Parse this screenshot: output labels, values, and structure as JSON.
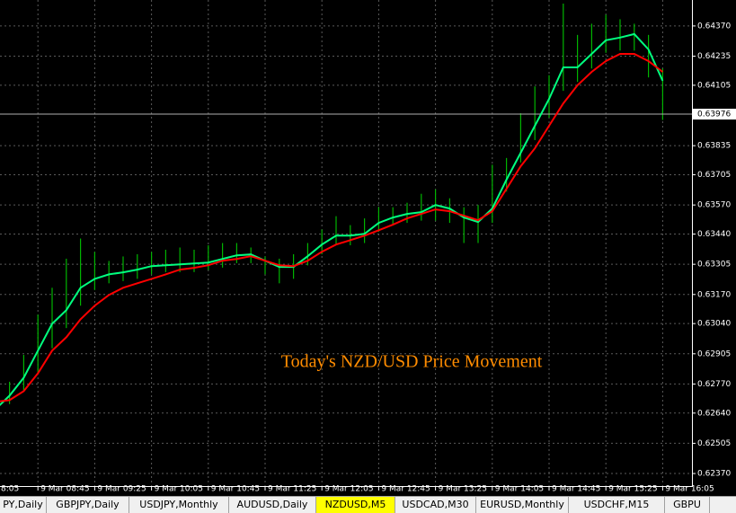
{
  "chart_data": {
    "type": "line",
    "annotation": "Today's NZD/USD Price Movement",
    "annotation_color": "#ff8c00",
    "categories": [
      "8:05",
      null,
      null,
      null,
      "9 Mar 08:45",
      null,
      null,
      null,
      "9 Mar 09:25",
      null,
      null,
      null,
      "9 Mar 10:05",
      null,
      null,
      null,
      "9 Mar 10:45",
      null,
      null,
      null,
      "9 Mar 11:25",
      null,
      null,
      null,
      "9 Mar 12:05",
      null,
      null,
      null,
      "9 Mar 12:45",
      null,
      null,
      null,
      "9 Mar 13:25",
      null,
      null,
      null,
      "9 Mar 14:05",
      null,
      null,
      null,
      "9 Mar 14:45",
      null,
      null,
      null,
      "9 Mar 15:25",
      null,
      null,
      null,
      "9 Mar 16:05"
    ],
    "series": [
      {
        "color": "#00ff7f",
        "values": [
          0.62617,
          0.62657,
          0.62718,
          0.62798,
          0.62919,
          0.63039,
          0.631,
          0.632,
          0.6324,
          0.6326,
          0.63269,
          0.63281,
          0.63297,
          0.63301,
          0.63305,
          0.63309,
          0.63313,
          0.63329,
          0.63345,
          0.63349,
          0.63321,
          0.63293,
          0.63293,
          0.63341,
          0.63393,
          0.63433,
          0.63433,
          0.63441,
          0.6349,
          0.63514,
          0.6353,
          0.63538,
          0.6357,
          0.63554,
          0.63514,
          0.63494,
          0.63554,
          0.63683,
          0.63803,
          0.63924,
          0.64044,
          0.64185,
          0.64185,
          0.64245,
          0.64306,
          0.64318,
          0.64334,
          0.64265,
          0.64125
        ]
      },
      {
        "color": "#ff0000",
        "values": [
          0.62678,
          0.6269,
          0.62698,
          0.62738,
          0.62818,
          0.62919,
          0.62979,
          0.63059,
          0.6312,
          0.63168,
          0.632,
          0.6322,
          0.6324,
          0.6326,
          0.63281,
          0.63289,
          0.63301,
          0.63321,
          0.63329,
          0.63341,
          0.63321,
          0.63301,
          0.63297,
          0.63321,
          0.63361,
          0.63393,
          0.63413,
          0.63433,
          0.63457,
          0.63482,
          0.6351,
          0.6353,
          0.6355,
          0.63542,
          0.63522,
          0.63502,
          0.63542,
          0.63642,
          0.63743,
          0.63823,
          0.63924,
          0.64024,
          0.64105,
          0.64165,
          0.64213,
          0.64245,
          0.64245,
          0.64213,
          0.64165
        ]
      }
    ],
    "price_bars": {
      "color": "#00b400",
      "high": [
        0.6266,
        0.627,
        0.6278,
        0.629,
        0.6308,
        0.632,
        0.6333,
        0.6342,
        0.6336,
        0.6332,
        0.6334,
        0.6335,
        0.6336,
        0.6337,
        0.6338,
        0.6337,
        0.6339,
        0.634,
        0.634,
        0.6338,
        0.6334,
        0.6333,
        0.6335,
        0.634,
        0.6346,
        0.6352,
        0.6348,
        0.6351,
        0.6356,
        0.6356,
        0.6358,
        0.6362,
        0.6364,
        0.636,
        0.6356,
        0.6357,
        0.6375,
        0.6378,
        0.6398,
        0.641,
        0.6415,
        0.6447,
        0.6433,
        0.6438,
        0.6442,
        0.644,
        0.6438,
        0.6433,
        0.6418
      ],
      "low": [
        0.6258,
        0.6262,
        0.6268,
        0.6274,
        0.6282,
        0.6293,
        0.6302,
        0.6312,
        0.6319,
        0.6322,
        0.6323,
        0.6324,
        0.6326,
        0.6327,
        0.6327,
        0.6327,
        0.6328,
        0.6329,
        0.6331,
        0.6331,
        0.6326,
        0.6322,
        0.6324,
        0.633,
        0.6335,
        0.6339,
        0.6339,
        0.634,
        0.6345,
        0.6348,
        0.6349,
        0.635,
        0.635,
        0.6349,
        0.634,
        0.634,
        0.6349,
        0.6363,
        0.6376,
        0.6386,
        0.6396,
        0.6408,
        0.6412,
        0.6418,
        0.6425,
        0.6426,
        0.6426,
        0.6414,
        0.6395
      ]
    },
    "current_price": {
      "value": 0.63976,
      "label": "0.63976"
    },
    "ylim": [
      0.62318,
      0.64486
    ],
    "yticks": [
      {
        "value": 0.6437,
        "label": "0.64370"
      },
      {
        "value": 0.64235,
        "label": "0.64235"
      },
      {
        "value": 0.64105,
        "label": "0.64105"
      },
      {
        "value": 0.63835,
        "label": "0.63835"
      },
      {
        "value": 0.63705,
        "label": "0.63705"
      },
      {
        "value": 0.6357,
        "label": "0.63570"
      },
      {
        "value": 0.6344,
        "label": "0.63440"
      },
      {
        "value": 0.63305,
        "label": "0.63305"
      },
      {
        "value": 0.6317,
        "label": "0.63170"
      },
      {
        "value": 0.6304,
        "label": "0.63040"
      },
      {
        "value": 0.62905,
        "label": "0.62905"
      },
      {
        "value": 0.6277,
        "label": "0.62770"
      },
      {
        "value": 0.6264,
        "label": "0.62640"
      },
      {
        "value": 0.62505,
        "label": "0.62505"
      },
      {
        "value": 0.6237,
        "label": "0.62370"
      }
    ],
    "grid": true
  },
  "tabs": [
    "PY,Daily",
    "GBPJPY,Daily",
    "USDJPY,Monthly",
    "AUDUSD,Daily",
    "NZDUSD,M5",
    "USDCAD,M30",
    "EURUSD,Monthly",
    "USDCHF,M15",
    "GBPU"
  ],
  "active_tab": 4
}
